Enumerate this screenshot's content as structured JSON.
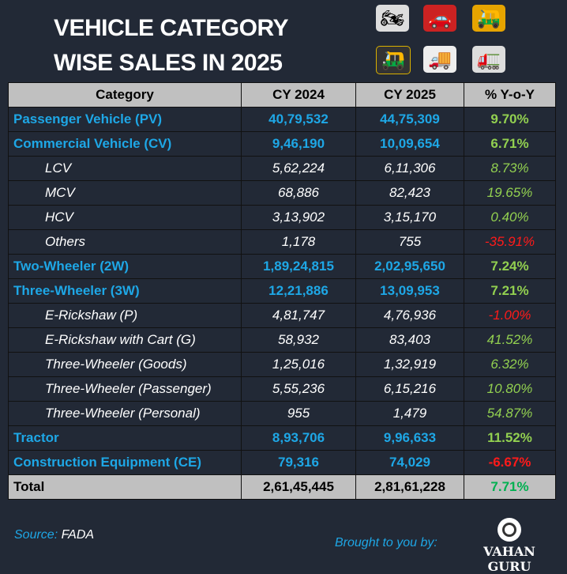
{
  "title": {
    "line1": "VEHICLE CATEGORY",
    "line2": "WISE SALES IN 2025"
  },
  "icons": [
    "motorcycle-icon",
    "car-icon",
    "auto-rickshaw-goods-icon",
    "auto-rickshaw-icon",
    "mini-truck-icon",
    "truck-icon"
  ],
  "colors": {
    "background": "#222936",
    "main_text": "#1ea7e6",
    "positive": "#92d050",
    "negative": "#ff1a1a",
    "total_positive": "#00b050",
    "header_bg": "#c0c0c0"
  },
  "table": {
    "headers": [
      "Category",
      "CY 2024",
      "CY 2025",
      "% Y-o-Y"
    ],
    "rows": [
      {
        "type": "main",
        "category": "Passenger Vehicle (PV)",
        "cy2024": "40,79,532",
        "cy2025": "44,75,309",
        "yoy": "9.70%",
        "sign": "pos"
      },
      {
        "type": "main",
        "category": "Commercial Vehicle (CV)",
        "cy2024": "9,46,190",
        "cy2025": "10,09,654",
        "yoy": "6.71%",
        "sign": "pos"
      },
      {
        "type": "sub",
        "category": "LCV",
        "cy2024": "5,62,224",
        "cy2025": "6,11,306",
        "yoy": "8.73%",
        "sign": "pos"
      },
      {
        "type": "sub",
        "category": "MCV",
        "cy2024": "68,886",
        "cy2025": "82,423",
        "yoy": "19.65%",
        "sign": "pos"
      },
      {
        "type": "sub",
        "category": "HCV",
        "cy2024": "3,13,902",
        "cy2025": "3,15,170",
        "yoy": "0.40%",
        "sign": "pos"
      },
      {
        "type": "sub",
        "category": "Others",
        "cy2024": "1,178",
        "cy2025": "755",
        "yoy": "-35.91%",
        "sign": "neg"
      },
      {
        "type": "main",
        "category": "Two-Wheeler (2W)",
        "cy2024": "1,89,24,815",
        "cy2025": "2,02,95,650",
        "yoy": "7.24%",
        "sign": "pos"
      },
      {
        "type": "main",
        "category": "Three-Wheeler (3W)",
        "cy2024": "12,21,886",
        "cy2025": "13,09,953",
        "yoy": "7.21%",
        "sign": "pos"
      },
      {
        "type": "sub",
        "category": "E-Rickshaw (P)",
        "cy2024": "4,81,747",
        "cy2025": "4,76,936",
        "yoy": "-1.00%",
        "sign": "neg"
      },
      {
        "type": "sub",
        "category": "E-Rickshaw with Cart (G)",
        "cy2024": "58,932",
        "cy2025": "83,403",
        "yoy": "41.52%",
        "sign": "pos"
      },
      {
        "type": "sub",
        "category": "Three-Wheeler (Goods)",
        "cy2024": "1,25,016",
        "cy2025": "1,32,919",
        "yoy": "6.32%",
        "sign": "pos"
      },
      {
        "type": "sub",
        "category": "Three-Wheeler (Passenger)",
        "cy2024": "5,55,236",
        "cy2025": "6,15,216",
        "yoy": "10.80%",
        "sign": "pos"
      },
      {
        "type": "sub",
        "category": "Three-Wheeler (Personal)",
        "cy2024": "955",
        "cy2025": "1,479",
        "yoy": "54.87%",
        "sign": "pos"
      },
      {
        "type": "main",
        "category": "Tractor",
        "cy2024": "8,93,706",
        "cy2025": "9,96,633",
        "yoy": "11.52%",
        "sign": "pos"
      },
      {
        "type": "main",
        "category": "Construction Equipment (CE)",
        "cy2024": "79,316",
        "cy2025": "74,029",
        "yoy": "-6.67%",
        "sign": "neg"
      }
    ],
    "total": {
      "category": "Total",
      "cy2024": "2,61,45,445",
      "cy2025": "2,81,61,228",
      "yoy": "7.71%"
    }
  },
  "footer": {
    "source_label": "Source:",
    "source_value": "FADA",
    "brought": "Brought to you by:",
    "brand": "VAHAN GURU"
  }
}
